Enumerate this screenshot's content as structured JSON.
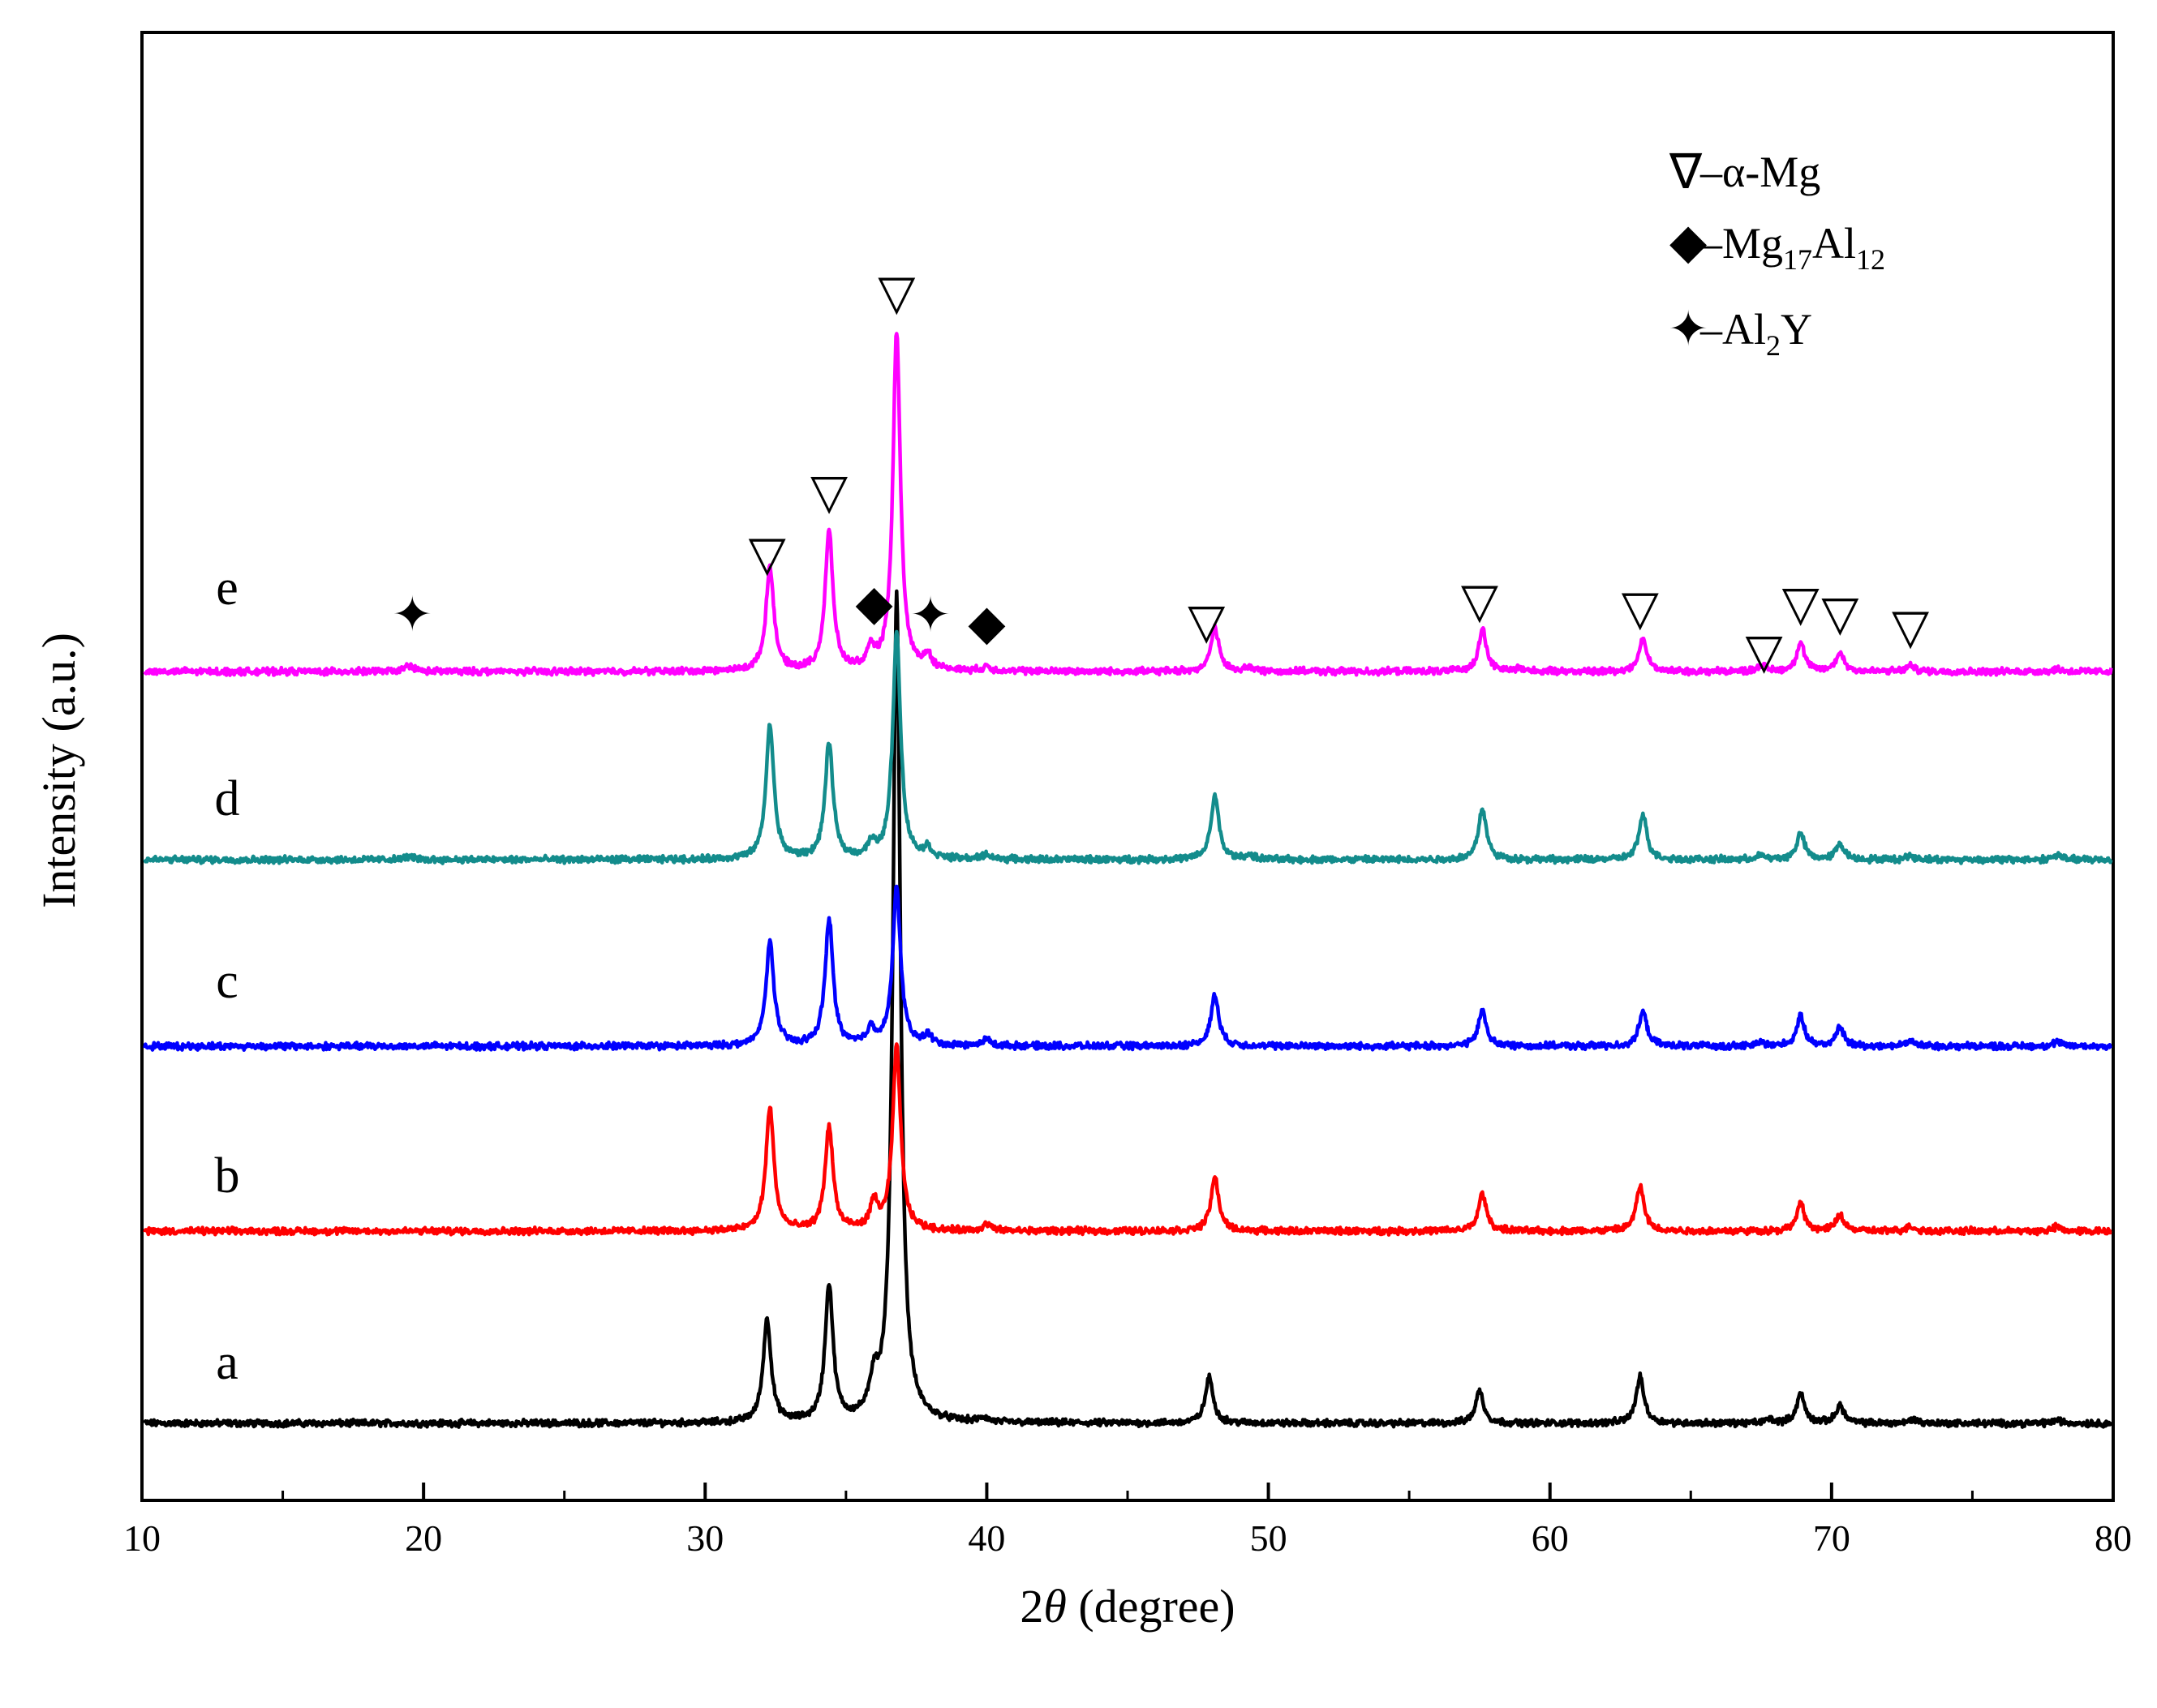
{
  "chart_data": {
    "type": "line",
    "title": "",
    "xlabel": "2θ (degree)",
    "xlabel_prefix": "2",
    "xlabel_theta": "θ",
    "xlabel_suffix": " (degree)",
    "ylabel": "Intensity (a.u.)",
    "xlim": [
      10,
      80
    ],
    "x_ticks": [
      10,
      20,
      30,
      40,
      50,
      60,
      70,
      80
    ],
    "x_tick_labels": [
      "10",
      "20",
      "30",
      "40",
      "50",
      "60",
      "70",
      "80"
    ],
    "y_ticks_shown": false,
    "series": [
      {
        "name": "a",
        "color": "#000000",
        "peaks": [
          [
            32.2,
            127
          ],
          [
            34.4,
            168
          ],
          [
            36.0,
            42
          ],
          [
            36.8,
            1020
          ],
          [
            39.9,
            5
          ],
          [
            47.9,
            56
          ],
          [
            57.5,
            40
          ],
          [
            63.2,
            57
          ],
          [
            67.8,
            5
          ],
          [
            68.9,
            36
          ],
          [
            70.3,
            22
          ],
          [
            72.9,
            5
          ],
          [
            78.0,
            4
          ]
        ]
      },
      {
        "name": "b",
        "color": "#ff0000",
        "peaks": [
          [
            32.3,
            152
          ],
          [
            34.4,
            128
          ],
          [
            36.0,
            32
          ],
          [
            36.8,
            226
          ],
          [
            40.0,
            8
          ],
          [
            48.1,
            66
          ],
          [
            57.6,
            46
          ],
          [
            63.2,
            55
          ],
          [
            68.9,
            33
          ],
          [
            70.3,
            20
          ],
          [
            72.8,
            6
          ],
          [
            78.0,
            5
          ]
        ]
      },
      {
        "name": "c",
        "color": "#0000ff",
        "peaks": [
          [
            32.3,
            128
          ],
          [
            34.4,
            155
          ],
          [
            35.9,
            20
          ],
          [
            36.8,
            194
          ],
          [
            37.9,
            12
          ],
          [
            40.0,
            8
          ],
          [
            48.1,
            63
          ],
          [
            57.6,
            44
          ],
          [
            63.3,
            42
          ],
          [
            67.5,
            5
          ],
          [
            68.9,
            36
          ],
          [
            70.3,
            23
          ],
          [
            72.8,
            7
          ],
          [
            78.0,
            5
          ]
        ]
      },
      {
        "name": "d",
        "color": "#138c8c",
        "peaks": [
          [
            19.5,
            4
          ],
          [
            32.3,
            165
          ],
          [
            34.4,
            142
          ],
          [
            35.9,
            16
          ],
          [
            36.8,
            278
          ],
          [
            37.9,
            12
          ],
          [
            40.0,
            6
          ],
          [
            48.1,
            78
          ],
          [
            49.3,
            5
          ],
          [
            57.6,
            63
          ],
          [
            63.3,
            55
          ],
          [
            67.5,
            5
          ],
          [
            68.9,
            32
          ],
          [
            70.3,
            20
          ],
          [
            72.8,
            5
          ],
          [
            78.0,
            6
          ]
        ]
      },
      {
        "name": "e",
        "color": "#ff00ff",
        "peaks": [
          [
            19.5,
            8
          ],
          [
            32.3,
            128
          ],
          [
            34.4,
            170
          ],
          [
            35.9,
            22
          ],
          [
            36.8,
            417
          ],
          [
            37.9,
            17
          ],
          [
            40.0,
            5
          ],
          [
            48.1,
            54
          ],
          [
            49.3,
            5
          ],
          [
            57.6,
            52
          ],
          [
            58.9,
            4
          ],
          [
            63.3,
            40
          ],
          [
            67.5,
            8
          ],
          [
            68.9,
            35
          ],
          [
            70.3,
            23
          ],
          [
            72.8,
            7
          ],
          [
            78.0,
            3
          ]
        ]
      }
    ],
    "annotations": [
      {
        "symbol": "▽",
        "x": 32.2,
        "series": "e",
        "phase": "α-Mg"
      },
      {
        "symbol": "▽",
        "x": 34.4,
        "series": "e",
        "phase": "α-Mg"
      },
      {
        "symbol": "▽",
        "x": 36.8,
        "series": "e",
        "phase": "α-Mg"
      },
      {
        "symbol": "▽",
        "x": 47.8,
        "series": "e",
        "phase": "α-Mg"
      },
      {
        "symbol": "▽",
        "x": 57.5,
        "series": "e",
        "phase": "α-Mg"
      },
      {
        "symbol": "▽",
        "x": 63.2,
        "series": "e",
        "phase": "α-Mg"
      },
      {
        "symbol": "▽",
        "x": 67.6,
        "series": "e",
        "phase": "α-Mg"
      },
      {
        "symbol": "▽",
        "x": 68.9,
        "series": "e",
        "phase": "α-Mg"
      },
      {
        "symbol": "▽",
        "x": 70.3,
        "series": "e",
        "phase": "α-Mg"
      },
      {
        "symbol": "▽",
        "x": 72.8,
        "series": "e",
        "phase": "α-Mg"
      },
      {
        "symbol": "◆",
        "x": 36.0,
        "series": "e",
        "phase": "Mg17Al12"
      },
      {
        "symbol": "◆",
        "x": 40.0,
        "series": "e",
        "phase": "Mg17Al12"
      },
      {
        "symbol": "✦",
        "x": 19.6,
        "series": "e",
        "phase": "Al2Y"
      },
      {
        "symbol": "✦",
        "x": 38.0,
        "series": "e",
        "phase": "Al2Y"
      }
    ],
    "legend": {
      "position": "top-right",
      "items": [
        {
          "symbol": "∇",
          "dash": "–",
          "text": "α-Mg"
        },
        {
          "symbol": "◆",
          "dash": "–",
          "text": "Mg",
          "sub1": "17",
          "text2": "Al",
          "sub2": "12"
        },
        {
          "symbol": "✦",
          "dash": "–",
          "text": "Al",
          "sub1": "2",
          "text2": "Y",
          "sub2": ""
        }
      ]
    }
  }
}
